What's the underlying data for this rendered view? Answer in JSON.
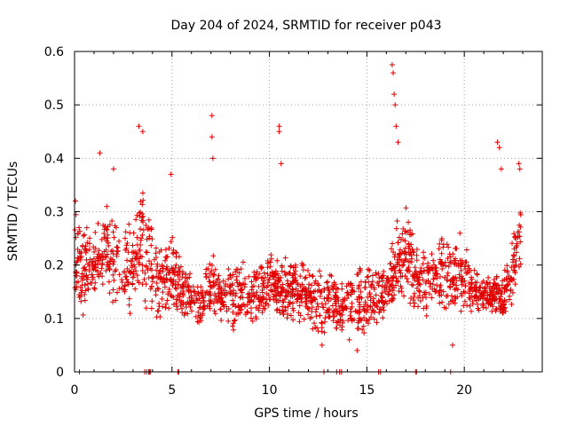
{
  "chart_data": {
    "type": "scatter",
    "title": "Day 204 of 2024, SRMTID for receiver p043",
    "xlabel": "GPS time / hours",
    "ylabel": "SRMTID / TECUs",
    "xlim": [
      0,
      24
    ],
    "ylim": [
      0,
      0.6
    ],
    "x_ticks": [
      0,
      5,
      10,
      15,
      20
    ],
    "x_tick_labels": [
      "0",
      "5",
      "10",
      "15",
      "20"
    ],
    "y_ticks": [
      0,
      0.1,
      0.2,
      0.3,
      0.4,
      0.5,
      0.6
    ],
    "y_tick_labels": [
      "0",
      "0.1",
      "0.2",
      "0.3",
      "0.4",
      "0.5",
      "0.6"
    ],
    "grid": true,
    "marker": "+",
    "color": "#e00000",
    "series": [
      {
        "name": "SRMTID",
        "envelope_hours": [
          0,
          0.5,
          1,
          1.5,
          2,
          2.5,
          3,
          3.5,
          4,
          4.5,
          5,
          5.5,
          6,
          6.5,
          7,
          7.5,
          8,
          8.5,
          9,
          9.5,
          10,
          10.5,
          11,
          11.5,
          12,
          12.5,
          13,
          13.5,
          14,
          14.5,
          15,
          15.5,
          16,
          16.5,
          17,
          17.5,
          18,
          18.5,
          19,
          19.5,
          20,
          20.5,
          21,
          21.5,
          22,
          22.5,
          22.9
        ],
        "envelope_low": [
          0.1,
          0.1,
          0.13,
          0.14,
          0.12,
          0.1,
          0.11,
          0.12,
          0.1,
          0.09,
          0.1,
          0.1,
          0.09,
          0.07,
          0.1,
          0.1,
          0.08,
          0.09,
          0.09,
          0.09,
          0.12,
          0.1,
          0.09,
          0.09,
          0.09,
          0.06,
          0.07,
          0.07,
          0.07,
          0.07,
          0.06,
          0.09,
          0.1,
          0.11,
          0.12,
          0.09,
          0.1,
          0.11,
          0.11,
          0.1,
          0.11,
          0.11,
          0.11,
          0.11,
          0.1,
          0.12,
          0.19
        ],
        "envelope_high": [
          0.3,
          0.28,
          0.26,
          0.32,
          0.33,
          0.29,
          0.3,
          0.35,
          0.28,
          0.24,
          0.27,
          0.21,
          0.18,
          0.18,
          0.22,
          0.19,
          0.2,
          0.21,
          0.2,
          0.21,
          0.23,
          0.22,
          0.21,
          0.22,
          0.2,
          0.2,
          0.19,
          0.18,
          0.19,
          0.2,
          0.2,
          0.2,
          0.21,
          0.28,
          0.32,
          0.26,
          0.24,
          0.25,
          0.26,
          0.26,
          0.26,
          0.19,
          0.18,
          0.18,
          0.18,
          0.26,
          0.33
        ],
        "highlights": [
          {
            "x": 0.05,
            "y": 0.32
          },
          {
            "x": 1.3,
            "y": 0.41
          },
          {
            "x": 2.0,
            "y": 0.38
          },
          {
            "x": 3.3,
            "y": 0.46
          },
          {
            "x": 3.5,
            "y": 0.45
          },
          {
            "x": 4.95,
            "y": 0.37
          },
          {
            "x": 7.05,
            "y": 0.48
          },
          {
            "x": 7.05,
            "y": 0.44
          },
          {
            "x": 7.1,
            "y": 0.4
          },
          {
            "x": 10.5,
            "y": 0.46
          },
          {
            "x": 10.5,
            "y": 0.45
          },
          {
            "x": 10.6,
            "y": 0.39
          },
          {
            "x": 16.3,
            "y": 0.575
          },
          {
            "x": 16.35,
            "y": 0.56
          },
          {
            "x": 16.4,
            "y": 0.52
          },
          {
            "x": 16.45,
            "y": 0.5
          },
          {
            "x": 16.5,
            "y": 0.46
          },
          {
            "x": 16.6,
            "y": 0.43
          },
          {
            "x": 21.7,
            "y": 0.43
          },
          {
            "x": 21.8,
            "y": 0.42
          },
          {
            "x": 21.9,
            "y": 0.38
          },
          {
            "x": 22.8,
            "y": 0.39
          },
          {
            "x": 22.85,
            "y": 0.38
          },
          {
            "x": 14.1,
            "y": 0.06
          },
          {
            "x": 14.5,
            "y": 0.04
          },
          {
            "x": 12.7,
            "y": 0.05
          },
          {
            "x": 19.4,
            "y": 0.05
          }
        ],
        "zero_hours": [
          0.25,
          3.6,
          3.7,
          3.8,
          3.85,
          3.9,
          5.3,
          5.35,
          12.8,
          13.45,
          13.6,
          13.7,
          15.6,
          15.7,
          17.5,
          17.55,
          19.3
        ]
      }
    ]
  }
}
